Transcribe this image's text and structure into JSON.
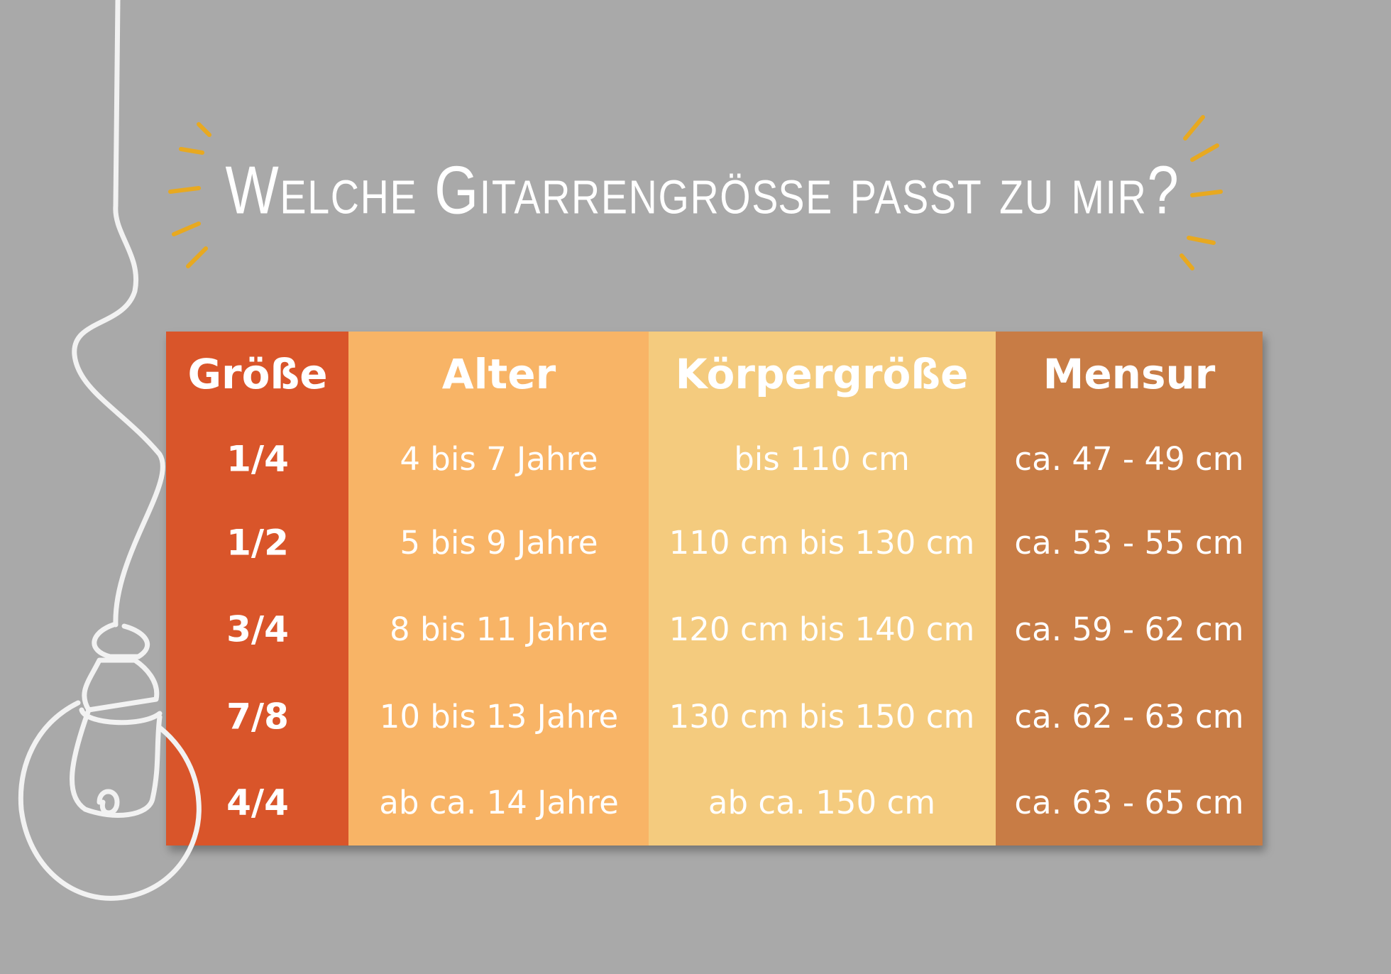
{
  "title": "Welche Gitarrengröße passt zu mir?",
  "table": {
    "header": [
      "Größe",
      "Alter",
      "Körpergröße",
      "Mensur"
    ],
    "rows": [
      [
        "1/4",
        "4 bis 7 Jahre",
        "bis 110 cm",
        "ca. 47 - 49 cm"
      ],
      [
        "1/2",
        "5 bis 9 Jahre",
        "110 cm bis 130 cm",
        "ca. 53 - 55 cm"
      ],
      [
        "3/4",
        "8 bis 11 Jahre",
        "120 cm bis 140 cm",
        "ca. 59 - 62 cm"
      ],
      [
        "7/8",
        "10 bis 13 Jahre",
        "130 cm bis 150 cm",
        "ca. 62 - 63 cm"
      ],
      [
        "4/4",
        "ab ca. 14 Jahre",
        "ab ca. 150 cm",
        "ca. 63 - 65 cm"
      ]
    ]
  }
}
